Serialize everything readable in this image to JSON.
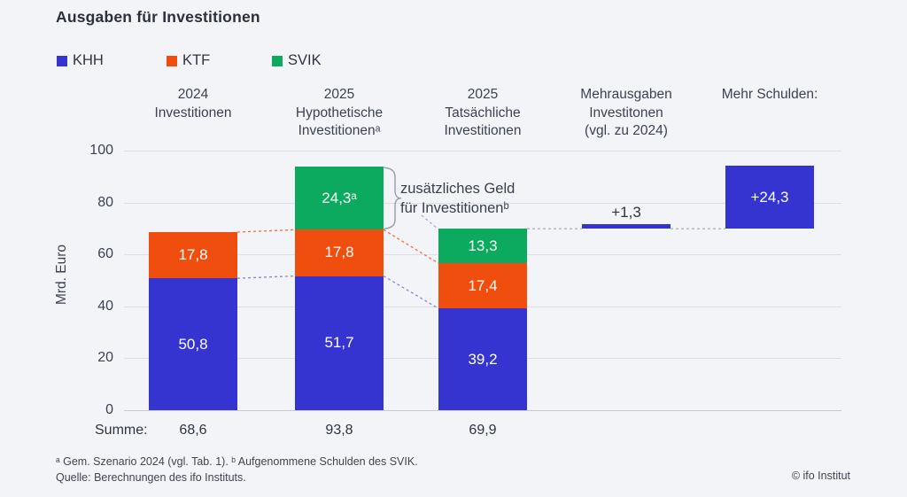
{
  "title": "Ausgaben für Investitionen",
  "legend": [
    {
      "label": "KHH",
      "color": "#3634d0"
    },
    {
      "label": "KTF",
      "color": "#f04e0f"
    },
    {
      "label": "SVIK",
      "color": "#0caa5e"
    }
  ],
  "columns": [
    "2024\nInvestitionen",
    "2025\nHypothetische\nInvestitionenᵃ",
    "2025\nTatsächliche\nInvestitionen",
    "Mehrausgaben\nInvestitonen\n(vgl. zu 2024)",
    "Mehr Schulden:"
  ],
  "y_axis": {
    "label": "Mrd. Euro",
    "ticks": [
      "0",
      "20",
      "40",
      "60",
      "80",
      "100"
    ]
  },
  "annotation": "zusätzliches Geld\nfür Investitionenᵇ",
  "summe": {
    "label": "Summe:",
    "values": [
      "68,6",
      "93,8",
      "69,9"
    ]
  },
  "footnotes": [
    "ᵃ Gem. Szenario 2024 (vgl. Tab. 1). ᵇ Aufgenommene Schulden des SVIK.",
    "Quelle: Berechnungen des ifo Instituts."
  ],
  "copyright": "© ifo Institut",
  "chart_data": {
    "type": "bar",
    "stacked": true,
    "title": "Ausgaben für Investitionen",
    "ylabel": "Mrd. Euro",
    "ylim": [
      0,
      100
    ],
    "yticks": [
      0,
      20,
      40,
      60,
      80,
      100
    ],
    "grid": true,
    "legend_position": "top",
    "series_colors": {
      "KHH": "#3634d0",
      "KTF": "#f04e0f",
      "SVIK": "#0caa5e"
    },
    "categories": [
      "2024 Investitionen",
      "2025 Hypothetische Investitionen",
      "2025 Tatsächliche Investitionen",
      "Mehrausgaben Investitonen (vgl. zu 2024)",
      "Mehr Schulden:"
    ],
    "bars": [
      {
        "type": "stacked",
        "sum": 68.6,
        "segments": [
          {
            "series": "KHH",
            "value": 50.8,
            "label": "50,8"
          },
          {
            "series": "KTF",
            "value": 17.8,
            "label": "17,8"
          }
        ]
      },
      {
        "type": "stacked",
        "sum": 93.8,
        "segments": [
          {
            "series": "KHH",
            "value": 51.7,
            "label": "51,7"
          },
          {
            "series": "KTF",
            "value": 17.8,
            "label": "17,8"
          },
          {
            "series": "SVIK",
            "value": 24.3,
            "label": "24,3ᵃ"
          }
        ]
      },
      {
        "type": "stacked",
        "sum": 69.9,
        "segments": [
          {
            "series": "KHH",
            "value": 39.2,
            "label": "39,2"
          },
          {
            "series": "KTF",
            "value": 17.4,
            "label": "17,4"
          },
          {
            "series": "SVIK",
            "value": 13.3,
            "label": "13,3"
          }
        ]
      },
      {
        "type": "float",
        "series": "KHH",
        "base": 69.9,
        "value": 1.3,
        "label": "+1,3",
        "label_inside": false,
        "thin": true
      },
      {
        "type": "float",
        "series": "KHH",
        "base": 69.9,
        "value": 24.3,
        "label": "+24,3",
        "label_inside": true,
        "thin": false
      }
    ],
    "connectors": [
      {
        "color_series": "KTF",
        "from_bar": 0,
        "from_level": 68.6,
        "to_bar": 1,
        "to_level": 69.5
      },
      {
        "color_series": "KTF",
        "from_bar": 1,
        "from_level": 69.5,
        "to_bar": 2,
        "to_level": 56.6
      },
      {
        "color_series": "KHH",
        "from_bar": 0,
        "from_level": 50.8,
        "to_bar": 1,
        "to_level": 51.7
      },
      {
        "color_series": "KHH",
        "from_bar": 1,
        "from_level": 51.7,
        "to_bar": 2,
        "to_level": 39.2
      },
      {
        "color_series": "gray",
        "from_bar": 2,
        "from_level": 69.9,
        "to_bar": 3,
        "to_level": 69.9
      },
      {
        "color_series": "gray",
        "from_bar": 3,
        "from_level": 69.9,
        "to_bar": 4,
        "to_level": 69.9
      }
    ],
    "brace": {
      "bar": 1,
      "from_level": 69.5,
      "to_level": 93.8,
      "annotation": "zusätzliches Geld für Investitionenᵇ"
    }
  }
}
